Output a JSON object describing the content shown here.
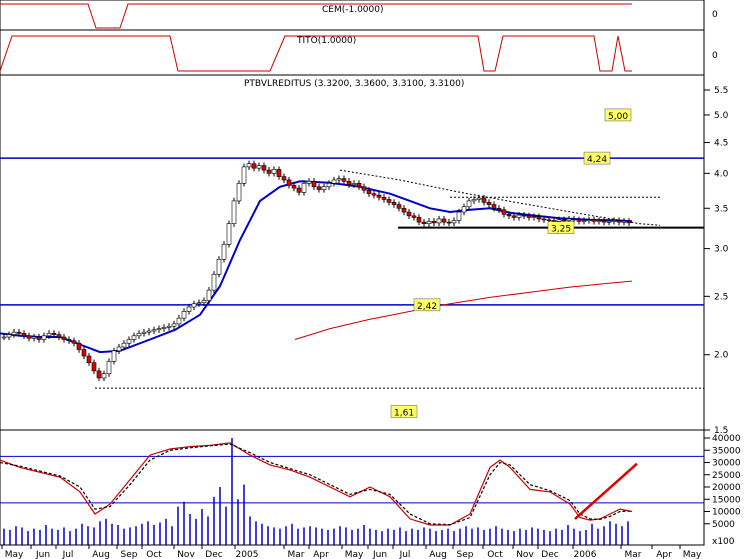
{
  "chart_data": [
    {
      "type": "line",
      "panel": "top indicator",
      "title": "CEM(-1.0000)",
      "y_ticks": [
        "0"
      ],
      "note": "binary step indicator",
      "series": [
        {
          "name": "CEM(-1.0000)",
          "color": "#cc0000",
          "x": [
            0,
            88,
            96,
            120,
            128,
            625,
            632
          ],
          "values": [
            1,
            1,
            0,
            0,
            1,
            1,
            1
          ]
        }
      ]
    },
    {
      "type": "line",
      "panel": "second indicator",
      "title": "TITO(1.0000)",
      "y_ticks": [
        "0"
      ],
      "series": [
        {
          "name": "TITO(1.0000)",
          "color": "#cc0000",
          "x": [
            0,
            12,
            170,
            178,
            270,
            285,
            478,
            484,
            495,
            503,
            594,
            600,
            612,
            618,
            625,
            632
          ],
          "values": [
            0,
            1,
            1,
            0,
            0,
            1,
            1,
            0,
            0,
            1,
            1,
            0,
            0,
            1,
            0,
            0
          ]
        }
      ]
    },
    {
      "type": "candlestick",
      "panel": "price",
      "title": "PTBVLREDITUS (3.3200, 3.3600, 3.3100, 3.3100)",
      "y_scale": "log",
      "y_ticks": [
        1.5,
        2.0,
        2.5,
        3.0,
        3.5,
        4.0,
        4.5,
        5.0,
        5.5
      ],
      "y_tick_labels": [
        "1.5",
        "2.0",
        "2.5",
        "3.0",
        "3.5",
        "4.0",
        "4.5",
        "5.0",
        "5.5"
      ],
      "x_labels": [
        "May",
        "Jun",
        "Jul",
        "Aug",
        "Sep",
        "Oct",
        "Nov",
        "Dec",
        "2005",
        "Mar",
        "Apr",
        "May",
        "Jun",
        "Jul",
        "Aug",
        "Sep",
        "Oct",
        "Nov",
        "Dec",
        "2006",
        "Mar",
        "Apr",
        "May"
      ],
      "x_label_positions": [
        14,
        43,
        68,
        101,
        129,
        154,
        186,
        214,
        247,
        296,
        321,
        354,
        380,
        405,
        438,
        465,
        495,
        525,
        550,
        585,
        633,
        664,
        692
      ],
      "horizontal_levels": [
        {
          "value": 4.24,
          "label": "4,24",
          "color": "#0000cc"
        },
        {
          "value": 3.25,
          "label": "3,25",
          "color": "#000000"
        },
        {
          "value": 2.42,
          "label": "2,42",
          "color": "#0000cc"
        }
      ],
      "text_labels": [
        {
          "value": 5.0,
          "label": "5,00"
        },
        {
          "value": 1.61,
          "label": "1,61"
        }
      ],
      "dotted_levels": [
        1.76,
        3.65
      ],
      "candles": {
        "x": [
          4,
          9,
          14,
          19,
          24,
          29,
          34,
          39,
          44,
          49,
          54,
          59,
          64,
          69,
          74,
          79,
          84,
          89,
          94,
          99,
          104,
          109,
          114,
          119,
          124,
          129,
          134,
          139,
          144,
          149,
          154,
          159,
          164,
          169,
          174,
          179,
          184,
          189,
          194,
          199,
          204,
          209,
          214,
          219,
          224,
          229,
          234,
          239,
          244,
          249,
          254,
          259,
          264,
          269,
          274,
          279,
          284,
          289,
          294,
          299,
          304,
          309,
          314,
          319,
          324,
          329,
          334,
          339,
          344,
          349,
          354,
          359,
          364,
          369,
          374,
          379,
          384,
          389,
          394,
          399,
          404,
          409,
          414,
          419,
          424,
          429,
          434,
          439,
          444,
          449,
          454,
          459,
          464,
          469,
          474,
          479,
          484,
          489,
          494,
          499,
          504,
          509,
          514,
          519,
          524,
          529,
          534,
          539,
          544,
          549,
          554,
          559,
          564,
          569,
          574,
          579,
          584,
          589,
          594,
          599,
          604,
          609,
          614,
          619,
          624,
          629
        ],
        "close": [
          2.14,
          2.16,
          2.18,
          2.17,
          2.15,
          2.13,
          2.14,
          2.12,
          2.15,
          2.17,
          2.16,
          2.14,
          2.12,
          2.11,
          2.09,
          2.04,
          1.99,
          1.94,
          1.88,
          1.83,
          1.86,
          1.95,
          2.03,
          2.06,
          2.09,
          2.12,
          2.15,
          2.17,
          2.18,
          2.19,
          2.2,
          2.21,
          2.22,
          2.23,
          2.25,
          2.3,
          2.36,
          2.4,
          2.43,
          2.44,
          2.46,
          2.56,
          2.72,
          2.88,
          3.05,
          3.3,
          3.6,
          3.85,
          4.1,
          4.15,
          4.08,
          4.12,
          4.05,
          4.0,
          4.06,
          3.95,
          3.9,
          3.82,
          3.78,
          3.72,
          3.85,
          3.88,
          3.8,
          3.76,
          3.8,
          3.85,
          3.9,
          3.92,
          3.88,
          3.83,
          3.85,
          3.8,
          3.75,
          3.7,
          3.68,
          3.65,
          3.62,
          3.58,
          3.55,
          3.5,
          3.45,
          3.4,
          3.38,
          3.32,
          3.3,
          3.33,
          3.31,
          3.36,
          3.32,
          3.31,
          3.34,
          3.45,
          3.52,
          3.6,
          3.62,
          3.64,
          3.58,
          3.55,
          3.5,
          3.48,
          3.42,
          3.4,
          3.38,
          3.41,
          3.4,
          3.38,
          3.39,
          3.36,
          3.35,
          3.34,
          3.33,
          3.35,
          3.34,
          3.36,
          3.35,
          3.33,
          3.34,
          3.35,
          3.33,
          3.34,
          3.32,
          3.33,
          3.34,
          3.32,
          3.33,
          3.31
        ]
      },
      "series": [
        {
          "name": "moving average (blue)",
          "color": "#0000cc",
          "x": [
            0,
            20,
            40,
            60,
            80,
            100,
            120,
            150,
            175,
            200,
            220,
            240,
            260,
            280,
            300,
            330,
            360,
            390,
            410,
            430,
            450,
            470,
            490,
            510,
            530,
            560,
            590,
            620,
            632
          ],
          "values": [
            2.17,
            2.15,
            2.14,
            2.14,
            2.08,
            2.02,
            2.03,
            2.12,
            2.2,
            2.33,
            2.6,
            3.1,
            3.6,
            3.8,
            3.88,
            3.86,
            3.8,
            3.7,
            3.6,
            3.5,
            3.45,
            3.48,
            3.5,
            3.44,
            3.41,
            3.37,
            3.35,
            3.34,
            3.33
          ]
        },
        {
          "name": "long moving average (red)",
          "color": "#cc0000",
          "x": [
            295,
            330,
            370,
            410,
            450,
            490,
            530,
            570,
            610,
            632
          ],
          "values": [
            2.12,
            2.21,
            2.29,
            2.36,
            2.43,
            2.49,
            2.54,
            2.59,
            2.63,
            2.65
          ]
        },
        {
          "name": "resistance (dotted)",
          "color": "#000000",
          "x": [
            340,
            400,
            460,
            520,
            580,
            640,
            660
          ],
          "values": [
            4.05,
            3.9,
            3.72,
            3.57,
            3.43,
            3.3,
            3.28
          ]
        }
      ]
    },
    {
      "type": "line",
      "panel": "volume and oscillator",
      "y_ticks": [
        5000,
        10000,
        15000,
        20000,
        25000,
        30000,
        35000,
        40000
      ],
      "y_tick_labels": [
        "5000",
        "10000",
        "15000",
        "20000",
        "25000",
        "30000",
        "35000",
        "40000"
      ],
      "y_unit": "x100",
      "horizontal_levels": [
        32500,
        13500
      ],
      "volume": {
        "x": [
          4,
          10,
          16,
          22,
          28,
          34,
          40,
          46,
          52,
          58,
          64,
          70,
          76,
          82,
          88,
          94,
          100,
          106,
          112,
          118,
          124,
          130,
          136,
          142,
          148,
          154,
          160,
          166,
          172,
          178,
          184,
          190,
          196,
          202,
          208,
          214,
          220,
          226,
          232,
          238,
          244,
          250,
          256,
          262,
          268,
          274,
          280,
          286,
          292,
          298,
          304,
          310,
          316,
          322,
          328,
          334,
          340,
          346,
          352,
          358,
          364,
          370,
          376,
          382,
          388,
          394,
          400,
          406,
          412,
          418,
          424,
          430,
          436,
          442,
          448,
          454,
          460,
          466,
          472,
          478,
          484,
          490,
          496,
          502,
          508,
          514,
          520,
          526,
          532,
          538,
          544,
          550,
          556,
          562,
          568,
          574,
          580,
          586,
          592,
          598,
          604,
          610,
          616,
          622,
          628
        ],
        "values": [
          3000,
          2500,
          4000,
          3500,
          2000,
          3000,
          2500,
          4500,
          3000,
          2500,
          3500,
          2000,
          3000,
          5000,
          4000,
          3500,
          6000,
          7000,
          5000,
          4500,
          3000,
          3500,
          4000,
          5000,
          6000,
          4500,
          5500,
          7000,
          4000,
          12000,
          14000,
          9000,
          7000,
          11000,
          8000,
          16000,
          20000,
          12000,
          40000,
          15000,
          21000,
          8000,
          6000,
          5000,
          4000,
          3500,
          3000,
          4000,
          5000,
          3000,
          3500,
          4000,
          3500,
          3000,
          2500,
          3000,
          4000,
          3500,
          2500,
          3000,
          4500,
          3000,
          2500,
          2000,
          3000,
          2500,
          3500,
          2000,
          3000,
          2500,
          3500,
          3000,
          2000,
          2500,
          3000,
          2000,
          3000,
          4000,
          3000,
          3500,
          2500,
          3000,
          4000,
          3000,
          2500,
          2000,
          3000,
          2500,
          3500,
          3000,
          2500,
          2000,
          3000,
          2500,
          4500,
          3000,
          2000,
          2500,
          5000,
          3000,
          4000,
          6000,
          5000,
          4000,
          6000
        ]
      },
      "series": [
        {
          "name": "oscillator (red)",
          "color": "#cc0000",
          "x": [
            0,
            20,
            40,
            60,
            80,
            95,
            110,
            130,
            150,
            170,
            190,
            210,
            230,
            250,
            270,
            290,
            310,
            330,
            350,
            370,
            390,
            410,
            430,
            450,
            470,
            490,
            500,
            510,
            530,
            550,
            570,
            580,
            590,
            600,
            610,
            620,
            632
          ],
          "values": [
            31000,
            28000,
            26000,
            24000,
            18000,
            9000,
            13000,
            23000,
            33000,
            35500,
            36500,
            37000,
            38000,
            33000,
            29000,
            27000,
            24000,
            20000,
            16000,
            20000,
            16000,
            7000,
            4500,
            4500,
            9000,
            28000,
            31000,
            28000,
            19000,
            18000,
            13000,
            7500,
            6500,
            7000,
            9000,
            11000,
            10000
          ]
        },
        {
          "name": "signal (black dashed)",
          "color": "#000000",
          "x": [
            0,
            20,
            40,
            60,
            80,
            95,
            110,
            130,
            150,
            170,
            190,
            210,
            230,
            250,
            270,
            290,
            310,
            330,
            350,
            370,
            390,
            410,
            430,
            450,
            470,
            490,
            500,
            510,
            530,
            550,
            570,
            580,
            590,
            600,
            610,
            620,
            632
          ],
          "values": [
            30000,
            28500,
            26500,
            24500,
            20000,
            11000,
            12000,
            21000,
            31000,
            35000,
            36000,
            36800,
            37500,
            34000,
            30000,
            27500,
            25000,
            21000,
            17000,
            19000,
            17000,
            9000,
            5000,
            4600,
            7500,
            25000,
            30000,
            29000,
            21000,
            18500,
            14500,
            9000,
            7000,
            6800,
            8000,
            10000,
            10200
          ]
        },
        {
          "name": "trend arrow",
          "color": "#dd0000",
          "x": [
            575,
            637
          ],
          "values": [
            7000,
            29500
          ]
        }
      ]
    }
  ]
}
